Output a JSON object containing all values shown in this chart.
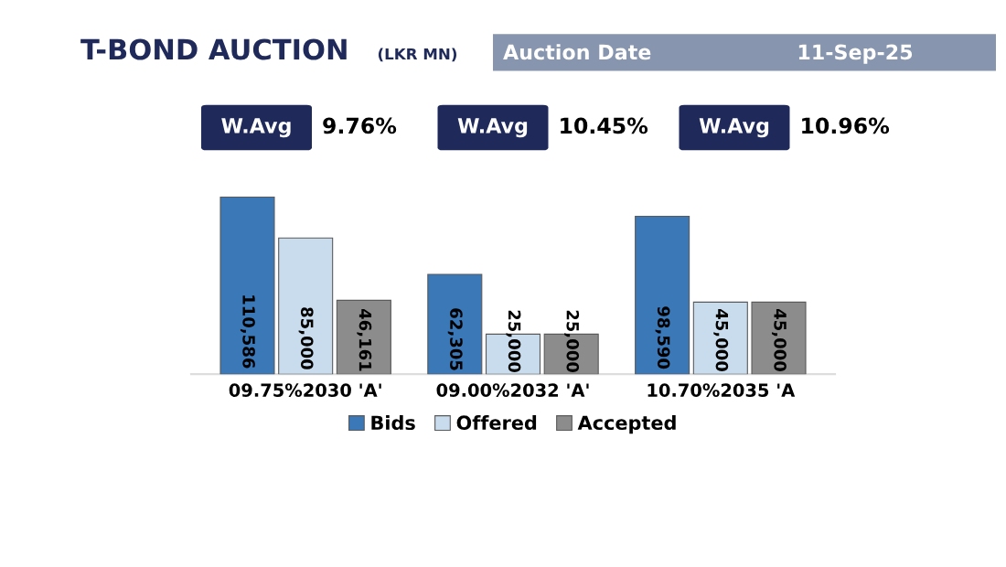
{
  "chart_data": {
    "type": "bar",
    "title": "T-BOND AUCTION",
    "subtitle": "(LKR MN)",
    "categories": [
      "09.75%2030 'A'",
      "09.00%2032 'A'",
      "10.70%2035 'A"
    ],
    "series": [
      {
        "name": "Bids",
        "color": "#3a78b8",
        "values": [
          110586,
          62305,
          98590
        ],
        "value_labels": [
          "110,586",
          "62,305",
          "98,590"
        ]
      },
      {
        "name": "Offered",
        "color": "#c9dcee",
        "values": [
          85000,
          25000,
          45000
        ],
        "value_labels": [
          "85,000",
          "25,000",
          "45,000"
        ]
      },
      {
        "name": "Accepted",
        "color": "#8c8c8c",
        "values": [
          46161,
          25000,
          45000
        ],
        "value_labels": [
          "46,161",
          "25,000",
          "45,000"
        ]
      }
    ],
    "tick_labels": "x",
    "legend": "bottom",
    "annotations": [
      "Auction Date",
      "11-Sep-25",
      "W.Avg",
      "9.76%",
      "W.Avg",
      "10.45%",
      "W.Avg",
      "10.96%"
    ]
  }
}
